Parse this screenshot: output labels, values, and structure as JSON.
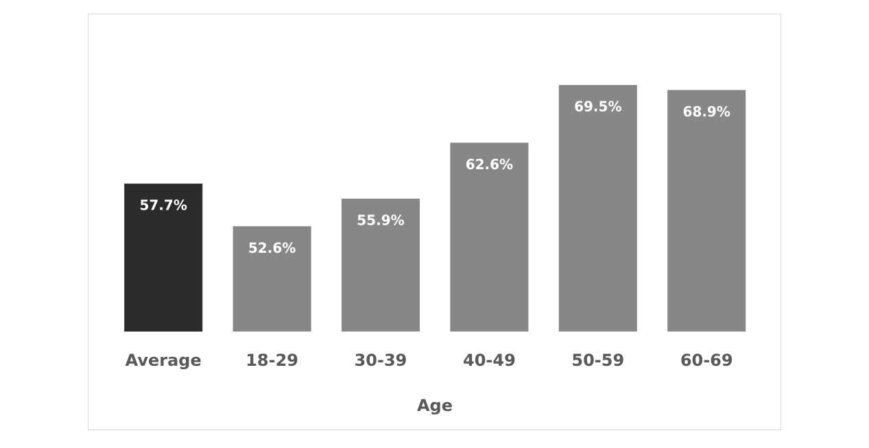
{
  "chart_data": {
    "type": "bar",
    "x_label": "Age",
    "categories": [
      "Average",
      "18-29",
      "30-39",
      "40-49",
      "50-59",
      "60-69"
    ],
    "values": [
      57.7,
      52.6,
      55.9,
      62.6,
      69.5,
      68.9
    ],
    "value_labels": [
      "57.7%",
      "52.6%",
      "55.9%",
      "62.6%",
      "69.5%",
      "68.9%"
    ],
    "colors": [
      "#2b2b2b",
      "#878787",
      "#878787",
      "#878787",
      "#878787",
      "#878787"
    ],
    "ylim": [
      40,
      72
    ],
    "grid": false
  }
}
